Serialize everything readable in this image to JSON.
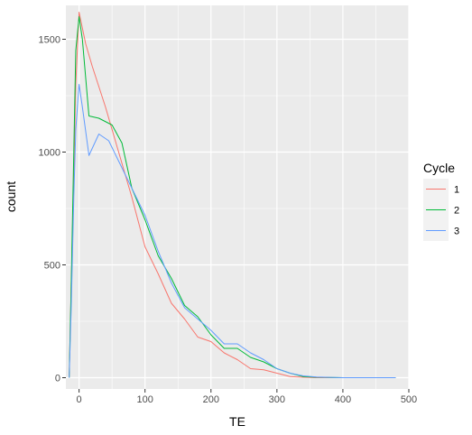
{
  "chart_data": {
    "type": "line",
    "xlabel": "TE",
    "ylabel": "count",
    "xlim": [
      -20,
      500
    ],
    "ylim": [
      -50,
      1650
    ],
    "x_ticks": [
      0,
      100,
      200,
      300,
      400,
      500
    ],
    "y_ticks": [
      0,
      500,
      1000,
      1500
    ],
    "grid": true,
    "legend": {
      "title": "Cycle",
      "position": "right"
    },
    "panel_color": "#ebebeb",
    "series": [
      {
        "name": "1",
        "color": "#F8766D",
        "points": [
          [
            -15,
            0
          ],
          [
            -12,
            400
          ],
          [
            -8,
            900
          ],
          [
            -5,
            1300
          ],
          [
            0,
            1620
          ],
          [
            10,
            1480
          ],
          [
            20,
            1380
          ],
          [
            40,
            1200
          ],
          [
            60,
            1000
          ],
          [
            80,
            800
          ],
          [
            100,
            580
          ],
          [
            120,
            460
          ],
          [
            140,
            330
          ],
          [
            160,
            260
          ],
          [
            180,
            180
          ],
          [
            200,
            160
          ],
          [
            220,
            110
          ],
          [
            240,
            80
          ],
          [
            260,
            40
          ],
          [
            280,
            35
          ],
          [
            300,
            20
          ],
          [
            320,
            5
          ],
          [
            340,
            2
          ],
          [
            360,
            0
          ],
          [
            400,
            0
          ],
          [
            440,
            0
          ],
          [
            480,
            0
          ]
        ]
      },
      {
        "name": "2",
        "color": "#00BA38",
        "points": [
          [
            -15,
            0
          ],
          [
            -12,
            400
          ],
          [
            -8,
            1000
          ],
          [
            -5,
            1450
          ],
          [
            0,
            1600
          ],
          [
            5,
            1500
          ],
          [
            15,
            1160
          ],
          [
            30,
            1150
          ],
          [
            50,
            1120
          ],
          [
            65,
            1040
          ],
          [
            80,
            840
          ],
          [
            100,
            700
          ],
          [
            120,
            540
          ],
          [
            140,
            440
          ],
          [
            160,
            320
          ],
          [
            180,
            270
          ],
          [
            200,
            190
          ],
          [
            220,
            130
          ],
          [
            240,
            130
          ],
          [
            260,
            90
          ],
          [
            280,
            70
          ],
          [
            300,
            40
          ],
          [
            320,
            20
          ],
          [
            340,
            5
          ],
          [
            360,
            2
          ],
          [
            400,
            0
          ],
          [
            440,
            0
          ],
          [
            480,
            0
          ]
        ]
      },
      {
        "name": "3",
        "color": "#619CFF",
        "points": [
          [
            -15,
            0
          ],
          [
            -12,
            300
          ],
          [
            -8,
            800
          ],
          [
            -5,
            1100
          ],
          [
            0,
            1300
          ],
          [
            5,
            1200
          ],
          [
            15,
            985
          ],
          [
            30,
            1080
          ],
          [
            45,
            1050
          ],
          [
            60,
            960
          ],
          [
            80,
            840
          ],
          [
            100,
            720
          ],
          [
            120,
            560
          ],
          [
            140,
            420
          ],
          [
            160,
            310
          ],
          [
            180,
            260
          ],
          [
            200,
            210
          ],
          [
            220,
            150
          ],
          [
            240,
            150
          ],
          [
            260,
            110
          ],
          [
            280,
            80
          ],
          [
            300,
            40
          ],
          [
            320,
            20
          ],
          [
            340,
            8
          ],
          [
            360,
            3
          ],
          [
            400,
            0
          ],
          [
            440,
            0
          ],
          [
            480,
            0
          ]
        ]
      }
    ]
  }
}
